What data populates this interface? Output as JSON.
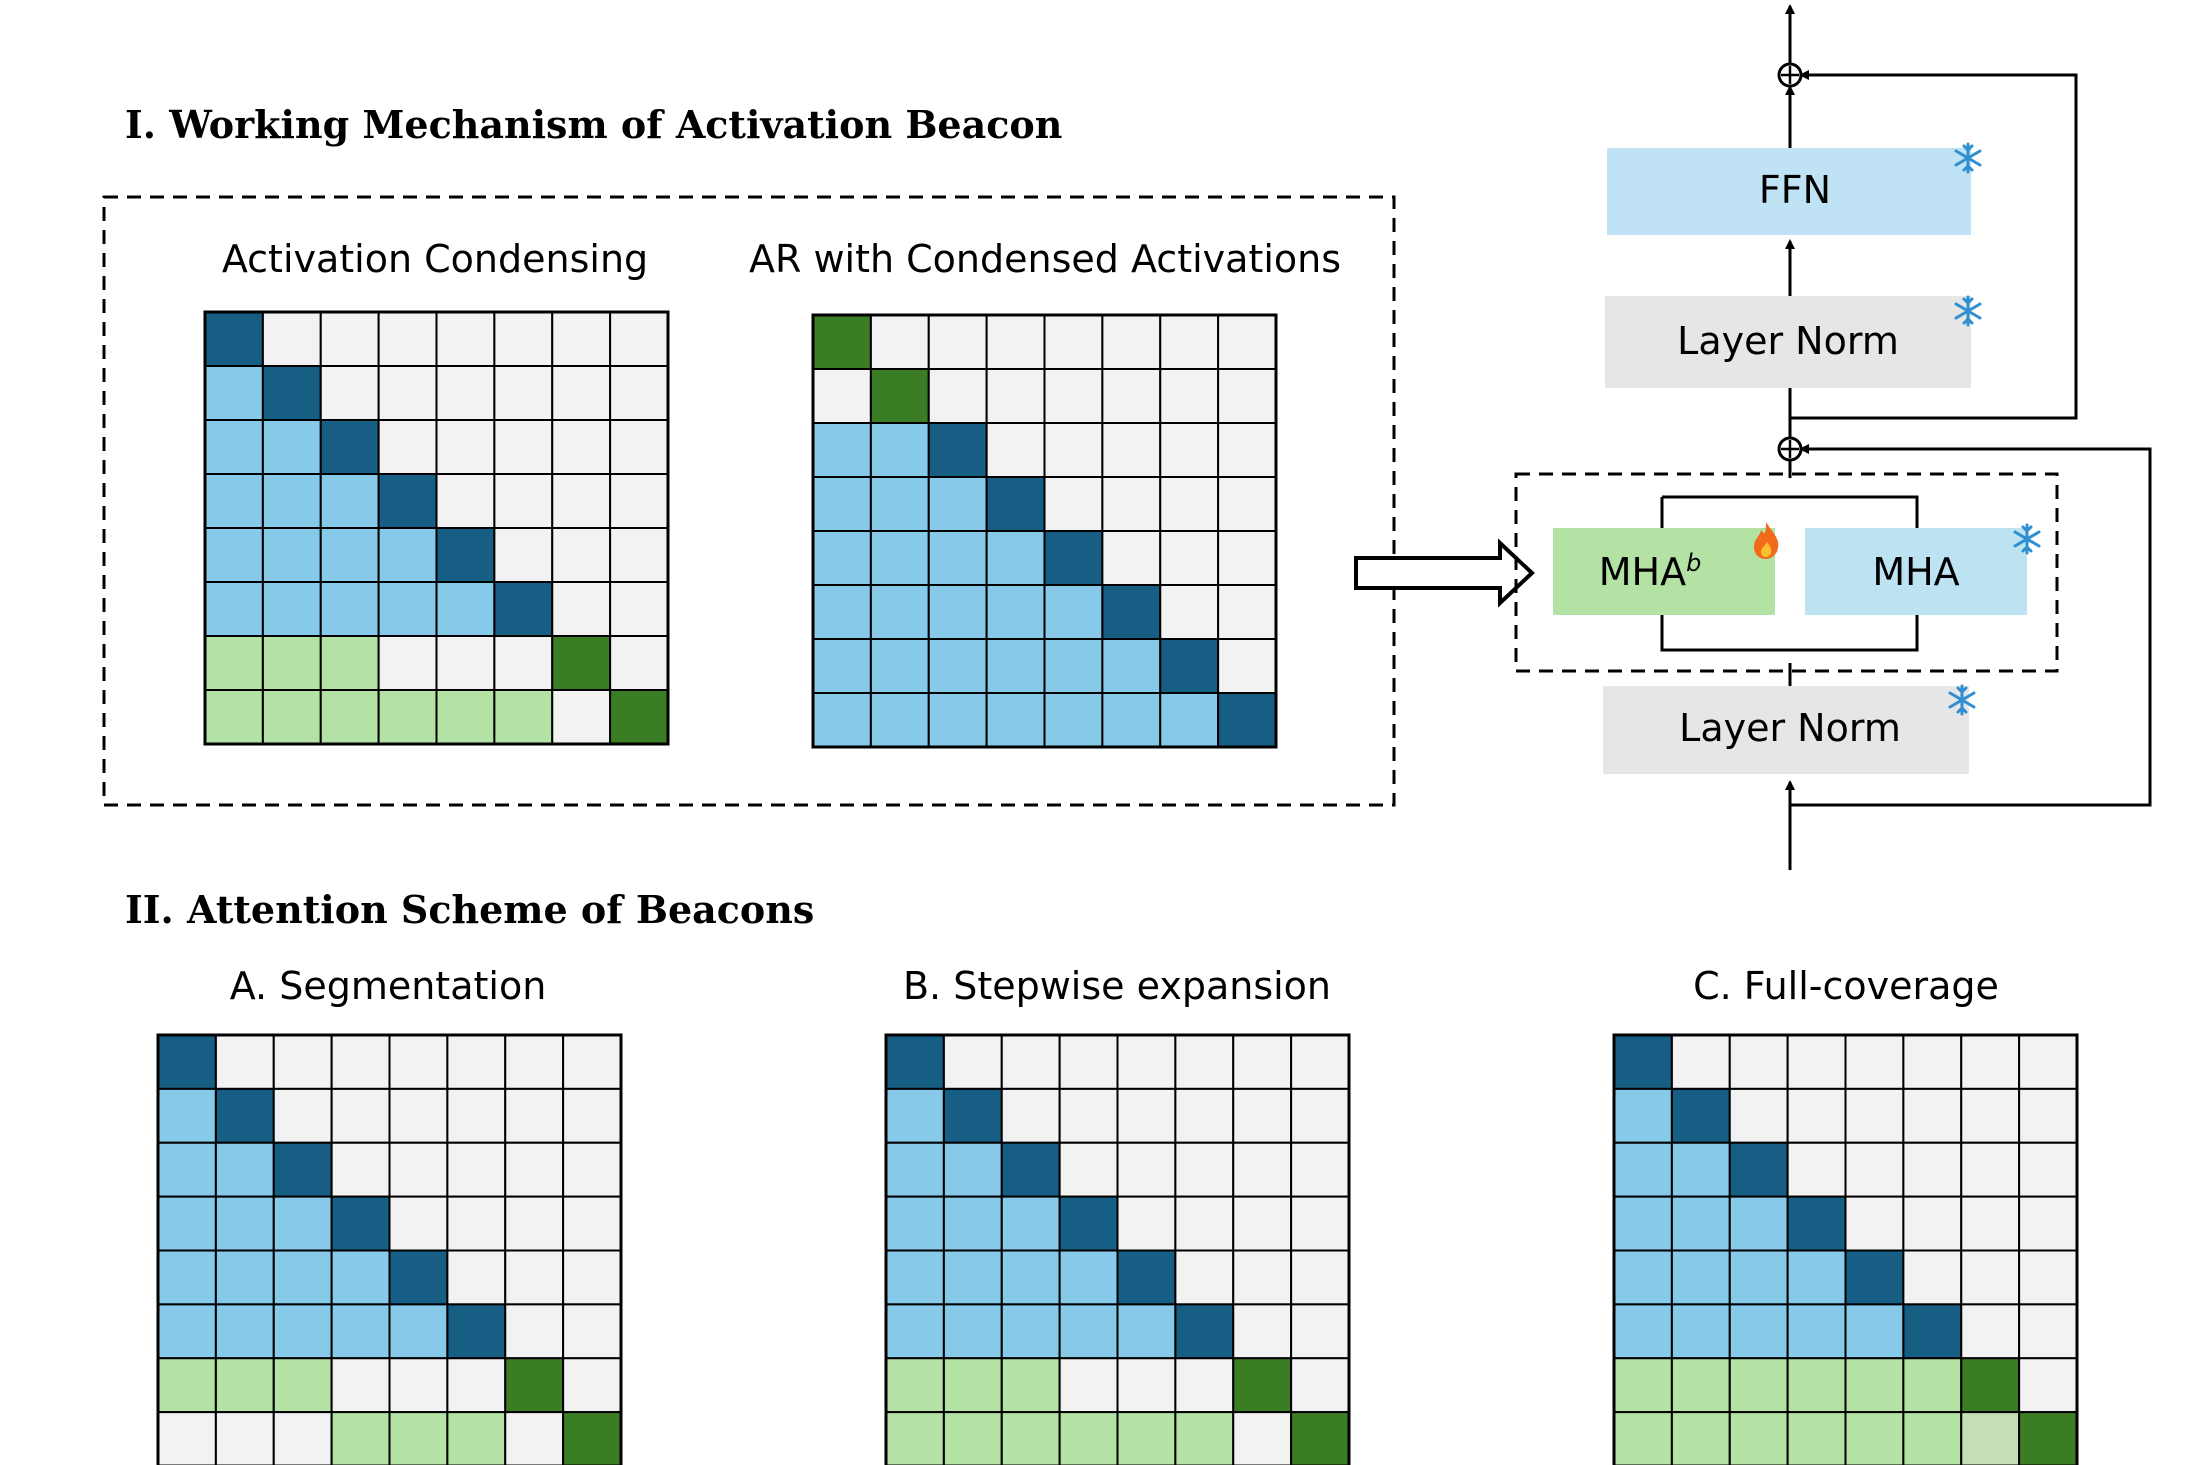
{
  "section1": {
    "title": "I. Working Mechanism of Activation Beacon"
  },
  "section2": {
    "title": "II. Attention Scheme of Beacons"
  },
  "colors": {
    "empty": "#f2f2f2",
    "diag_blue": "#175e84",
    "blue": "#87c9e8",
    "green": "#b4e2a4",
    "diag_green": "#3b7d25",
    "pale_green": "#c4dfb5",
    "mha_beacon": "#b3e2a4",
    "mha": "#bde3f2",
    "ffn": "#bfe3f4",
    "layer_norm": "#e6e6e6"
  },
  "legend_codes": {
    "0": "empty",
    "1": "diag_blue",
    "2": "blue",
    "3": "green",
    "4": "diag_green",
    "5": "pale_green"
  },
  "matrices": {
    "activation_condensing": {
      "title": "Activation Condensing",
      "rows": [
        [
          1,
          0,
          0,
          0,
          0,
          0,
          0,
          0
        ],
        [
          2,
          1,
          0,
          0,
          0,
          0,
          0,
          0
        ],
        [
          2,
          2,
          1,
          0,
          0,
          0,
          0,
          0
        ],
        [
          2,
          2,
          2,
          1,
          0,
          0,
          0,
          0
        ],
        [
          2,
          2,
          2,
          2,
          1,
          0,
          0,
          0
        ],
        [
          2,
          2,
          2,
          2,
          2,
          1,
          0,
          0
        ],
        [
          3,
          3,
          3,
          0,
          0,
          0,
          4,
          0
        ],
        [
          3,
          3,
          3,
          3,
          3,
          3,
          0,
          4
        ]
      ]
    },
    "ar_condensed": {
      "title": "AR with Condensed Activations",
      "rows": [
        [
          4,
          0,
          0,
          0,
          0,
          0,
          0,
          0
        ],
        [
          0,
          4,
          0,
          0,
          0,
          0,
          0,
          0
        ],
        [
          2,
          2,
          1,
          0,
          0,
          0,
          0,
          0
        ],
        [
          2,
          2,
          2,
          1,
          0,
          0,
          0,
          0
        ],
        [
          2,
          2,
          2,
          2,
          1,
          0,
          0,
          0
        ],
        [
          2,
          2,
          2,
          2,
          2,
          1,
          0,
          0
        ],
        [
          2,
          2,
          2,
          2,
          2,
          2,
          1,
          0
        ],
        [
          2,
          2,
          2,
          2,
          2,
          2,
          2,
          1
        ]
      ]
    },
    "segmentation": {
      "title": "A. Segmentation",
      "rows": [
        [
          1,
          0,
          0,
          0,
          0,
          0,
          0,
          0
        ],
        [
          2,
          1,
          0,
          0,
          0,
          0,
          0,
          0
        ],
        [
          2,
          2,
          1,
          0,
          0,
          0,
          0,
          0
        ],
        [
          2,
          2,
          2,
          1,
          0,
          0,
          0,
          0
        ],
        [
          2,
          2,
          2,
          2,
          1,
          0,
          0,
          0
        ],
        [
          2,
          2,
          2,
          2,
          2,
          1,
          0,
          0
        ],
        [
          3,
          3,
          3,
          0,
          0,
          0,
          4,
          0
        ],
        [
          0,
          0,
          0,
          3,
          3,
          3,
          0,
          4
        ]
      ]
    },
    "stepwise": {
      "title": "B. Stepwise expansion",
      "rows": [
        [
          1,
          0,
          0,
          0,
          0,
          0,
          0,
          0
        ],
        [
          2,
          1,
          0,
          0,
          0,
          0,
          0,
          0
        ],
        [
          2,
          2,
          1,
          0,
          0,
          0,
          0,
          0
        ],
        [
          2,
          2,
          2,
          1,
          0,
          0,
          0,
          0
        ],
        [
          2,
          2,
          2,
          2,
          1,
          0,
          0,
          0
        ],
        [
          2,
          2,
          2,
          2,
          2,
          1,
          0,
          0
        ],
        [
          3,
          3,
          3,
          0,
          0,
          0,
          4,
          0
        ],
        [
          3,
          3,
          3,
          3,
          3,
          3,
          0,
          4
        ]
      ]
    },
    "full_coverage": {
      "title": "C. Full-coverage",
      "rows": [
        [
          1,
          0,
          0,
          0,
          0,
          0,
          0,
          0
        ],
        [
          2,
          1,
          0,
          0,
          0,
          0,
          0,
          0
        ],
        [
          2,
          2,
          1,
          0,
          0,
          0,
          0,
          0
        ],
        [
          2,
          2,
          2,
          1,
          0,
          0,
          0,
          0
        ],
        [
          2,
          2,
          2,
          2,
          1,
          0,
          0,
          0
        ],
        [
          2,
          2,
          2,
          2,
          2,
          1,
          0,
          0
        ],
        [
          3,
          3,
          3,
          3,
          3,
          3,
          4,
          0
        ],
        [
          3,
          3,
          3,
          3,
          3,
          3,
          5,
          4
        ]
      ]
    }
  },
  "architecture": {
    "ffn": {
      "label": "FFN",
      "state": "frozen",
      "icon": "snowflake-icon"
    },
    "layer_norm_top": {
      "label": "Layer Norm",
      "state": "frozen",
      "icon": "snowflake-icon"
    },
    "mha_beacon": {
      "label": "MHA",
      "superscript": "b",
      "state": "trainable",
      "icon": "flame-icon"
    },
    "mha": {
      "label": "MHA",
      "state": "frozen",
      "icon": "snowflake-icon"
    },
    "layer_norm_bottom": {
      "label": "Layer Norm",
      "state": "frozen",
      "icon": "snowflake-icon"
    },
    "residual_symbol": "+"
  }
}
